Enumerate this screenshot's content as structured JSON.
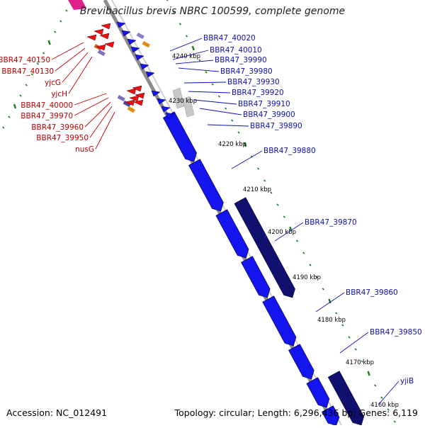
{
  "title": "Brevibacillus brevis NBRC 100599, complete genome",
  "footer": {
    "accession": "Accession: NC_012491",
    "topology": "Topology: circular; Length: 6,296,436 bp; Genes: 6,119"
  },
  "colors": {
    "forward_gene": "#1414ee",
    "forward_gene_dark": "#10106e",
    "reverse_gene": "#ee1010",
    "forward_label": "#1010b0",
    "reverse_label": "#c00000",
    "gc_dots": "#1a7a1a",
    "backbone": "#909090"
  },
  "scale_ticks": [
    "4240 kbp",
    "4230 kbp",
    "4220 kbp",
    "4210 kbp",
    "4200 kbp",
    "4190 kbp",
    "4180 kbp",
    "4170 kbp",
    "4160 kbp"
  ],
  "forward_genes": [
    "BBR47_40020",
    "BBR47_40010",
    "BBR47_39990",
    "BBR47_39980",
    "BBR47_39930",
    "BBR47_39920",
    "BBR47_39910",
    "BBR47_39900",
    "BBR47_39890",
    "BBR47_39880",
    "BBR47_39870",
    "BBR47_39860",
    "BBR47_39850",
    "yjiB"
  ],
  "reverse_genes": [
    "BBR47_40150",
    "BBR47_40130",
    "yjcG",
    "yjcH",
    "BBR47_40000",
    "BBR47_39970",
    "BBR47_39960",
    "BBR47_39950",
    "nusG"
  ]
}
